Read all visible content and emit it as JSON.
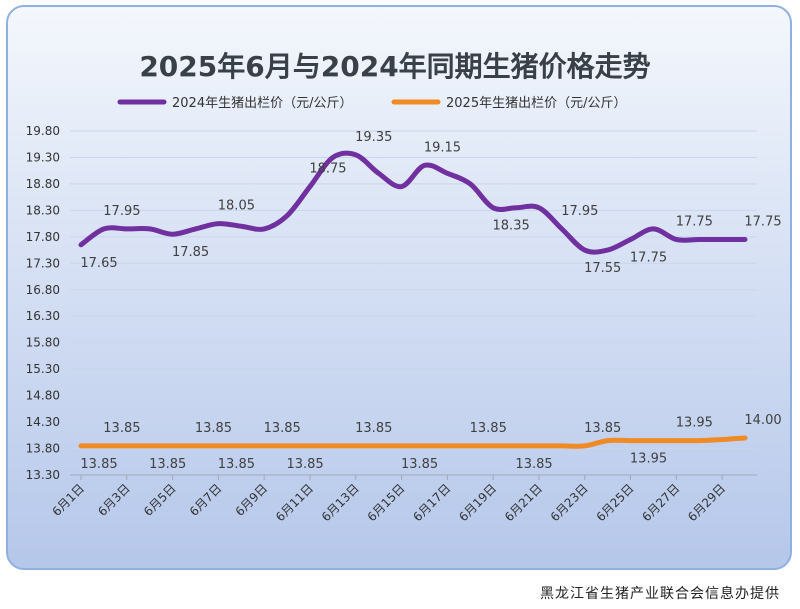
{
  "chart_data": {
    "type": "line",
    "title": "2025年6月与2024年同期生猪价格走势",
    "ylim": [
      13.3,
      19.8
    ],
    "y_ticks": [
      "19.80",
      "19.30",
      "18.80",
      "18.30",
      "17.80",
      "17.30",
      "16.80",
      "16.30",
      "15.80",
      "15.30",
      "14.80",
      "14.30",
      "13.80",
      "13.30"
    ],
    "x_tick_labels": [
      "6月1日",
      "6月3日",
      "6月5日",
      "6月7日",
      "6月9日",
      "6月11日",
      "6月13日",
      "6月15日",
      "6月17日",
      "6月19日",
      "6月21日",
      "6月23日",
      "6月25日",
      "6月27日",
      "6月29日"
    ],
    "x_days": [
      1,
      2,
      3,
      4,
      5,
      6,
      7,
      8,
      9,
      10,
      11,
      12,
      13,
      14,
      15,
      16,
      17,
      18,
      19,
      20,
      21,
      22,
      23,
      24,
      25,
      26,
      27,
      28,
      29,
      30
    ],
    "legend_position": "top",
    "series": [
      {
        "name": "2024年生猪出栏价（元/公斤）",
        "color": "#7030a0",
        "values": [
          17.65,
          17.95,
          17.95,
          17.95,
          17.85,
          17.95,
          18.05,
          18.0,
          17.95,
          18.2,
          18.75,
          19.3,
          19.35,
          19.0,
          18.75,
          19.15,
          19.0,
          18.8,
          18.35,
          18.35,
          18.35,
          17.95,
          17.55,
          17.55,
          17.75,
          17.95,
          17.75,
          17.75,
          17.75,
          17.75
        ],
        "labels": [
          {
            "day": 1,
            "text": "17.65",
            "pos": "below"
          },
          {
            "day": 2,
            "text": "17.95",
            "pos": "above"
          },
          {
            "day": 5,
            "text": "17.85",
            "pos": "below"
          },
          {
            "day": 7,
            "text": "18.05",
            "pos": "above"
          },
          {
            "day": 11,
            "text": "18.75",
            "pos": "above"
          },
          {
            "day": 13,
            "text": "19.35",
            "pos": "above"
          },
          {
            "day": 16,
            "text": "19.15",
            "pos": "above"
          },
          {
            "day": 19,
            "text": "18.35",
            "pos": "below"
          },
          {
            "day": 22,
            "text": "17.95",
            "pos": "above"
          },
          {
            "day": 23,
            "text": "17.55",
            "pos": "below"
          },
          {
            "day": 25,
            "text": "17.75",
            "pos": "below"
          },
          {
            "day": 27,
            "text": "17.75",
            "pos": "above"
          },
          {
            "day": 30,
            "text": "17.75",
            "pos": "above"
          }
        ]
      },
      {
        "name": "2025年生猪出栏价（元/公斤）",
        "color": "#f08a24",
        "values": [
          13.85,
          13.85,
          13.85,
          13.85,
          13.85,
          13.85,
          13.85,
          13.85,
          13.85,
          13.85,
          13.85,
          13.85,
          13.85,
          13.85,
          13.85,
          13.85,
          13.85,
          13.85,
          13.85,
          13.85,
          13.85,
          13.85,
          13.85,
          13.95,
          13.95,
          13.95,
          13.95,
          13.95,
          13.97,
          14.0
        ],
        "labels": [
          {
            "day": 1,
            "text": "13.85",
            "pos": "below"
          },
          {
            "day": 2,
            "text": "13.85",
            "pos": "above"
          },
          {
            "day": 4,
            "text": "13.85",
            "pos": "below"
          },
          {
            "day": 6,
            "text": "13.85",
            "pos": "above"
          },
          {
            "day": 7,
            "text": "13.85",
            "pos": "below"
          },
          {
            "day": 9,
            "text": "13.85",
            "pos": "above"
          },
          {
            "day": 10,
            "text": "13.85",
            "pos": "below"
          },
          {
            "day": 13,
            "text": "13.85",
            "pos": "above"
          },
          {
            "day": 15,
            "text": "13.85",
            "pos": "below"
          },
          {
            "day": 18,
            "text": "13.85",
            "pos": "above"
          },
          {
            "day": 20,
            "text": "13.85",
            "pos": "below"
          },
          {
            "day": 23,
            "text": "13.85",
            "pos": "above"
          },
          {
            "day": 25,
            "text": "13.95",
            "pos": "below"
          },
          {
            "day": 27,
            "text": "13.95",
            "pos": "above"
          },
          {
            "day": 30,
            "text": "14.00",
            "pos": "above"
          }
        ]
      }
    ]
  },
  "footer": {
    "source": "黑龙江省生猪产业联合会信息办提供"
  }
}
